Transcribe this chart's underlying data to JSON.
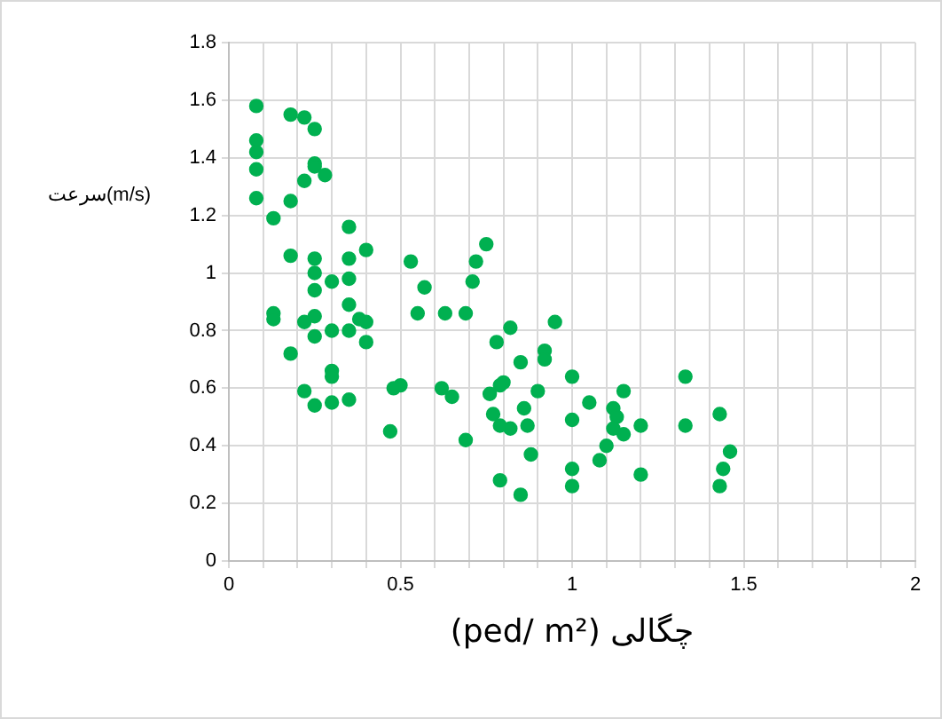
{
  "chart_data": {
    "type": "scatter",
    "xlabel": "(ped/ m²) چگالی",
    "ylabel": "سرعت(m/s)",
    "marker": "circle",
    "grid": true,
    "xlim": [
      0,
      2
    ],
    "xticks": [
      0,
      {
        "value": 0.1,
        "label": null
      },
      {
        "value": 0.2,
        "label": null
      },
      {
        "value": 0.3,
        "label": null
      },
      {
        "value": 0.4,
        "label": null
      },
      {
        "value": 0.5,
        "label": "0.5"
      },
      {
        "value": 0.6,
        "label": null
      },
      {
        "value": 0.7,
        "label": null
      },
      {
        "value": 0.8,
        "label": null
      },
      {
        "value": 0.9,
        "label": null
      },
      1,
      {
        "value": 1.1,
        "label": null
      },
      {
        "value": 1.2,
        "label": null
      },
      {
        "value": 1.3,
        "label": null
      },
      {
        "value": 1.4,
        "label": null
      },
      {
        "value": 1.5,
        "label": "1.5"
      },
      {
        "value": 1.6,
        "label": null
      },
      {
        "value": 1.7,
        "label": null
      },
      {
        "value": 1.8,
        "label": null
      },
      {
        "value": 1.9,
        "label": null
      },
      2
    ],
    "ylim": [
      0,
      1.8
    ],
    "yticks": [
      0,
      0.2,
      0.4,
      0.6,
      0.8,
      1,
      1.2,
      1.4,
      1.6,
      1.8
    ],
    "series": [
      {
        "color": "#00b050",
        "x": [
          0.08,
          0.08,
          0.08,
          0.08,
          0.08,
          0.18,
          0.22,
          0.25,
          0.25,
          0.25,
          0.22,
          0.28,
          0.18,
          0.13,
          0.35,
          0.18,
          0.4,
          0.25,
          0.35,
          0.25,
          0.3,
          0.35,
          0.25,
          0.13,
          0.13,
          0.22,
          0.3,
          0.25,
          0.35,
          0.38,
          0.35,
          0.4,
          0.4,
          0.25,
          0.18,
          0.3,
          0.3,
          0.22,
          0.3,
          0.35,
          0.25,
          0.47,
          0.5,
          0.48,
          0.53,
          0.57,
          0.55,
          0.63,
          0.69,
          0.75,
          0.72,
          0.71,
          0.62,
          0.65,
          0.78,
          0.82,
          0.76,
          0.8,
          0.79,
          0.77,
          0.69,
          0.79,
          0.79,
          0.82,
          0.85,
          0.85,
          0.88,
          0.9,
          0.92,
          0.95,
          1.0,
          0.86,
          0.87,
          0.92,
          1.0,
          1.0,
          1.0,
          1.05,
          1.08,
          1.1,
          1.12,
          1.12,
          1.13,
          1.15,
          1.15,
          1.2,
          1.2,
          1.33,
          1.33,
          1.43,
          1.46,
          1.44,
          1.43
        ],
        "values": [
          1.58,
          1.46,
          1.42,
          1.36,
          1.26,
          1.55,
          1.54,
          1.5,
          1.38,
          1.37,
          1.32,
          1.34,
          1.25,
          1.19,
          1.16,
          1.06,
          1.08,
          1.05,
          1.05,
          1.0,
          0.97,
          0.98,
          0.94,
          0.86,
          0.84,
          0.83,
          0.8,
          0.85,
          0.89,
          0.84,
          0.8,
          0.83,
          0.76,
          0.78,
          0.72,
          0.66,
          0.64,
          0.59,
          0.55,
          0.56,
          0.54,
          0.45,
          0.61,
          0.6,
          1.04,
          0.95,
          0.86,
          0.86,
          0.86,
          1.1,
          1.04,
          0.97,
          0.6,
          0.57,
          0.76,
          0.81,
          0.58,
          0.62,
          0.61,
          0.51,
          0.42,
          0.47,
          0.28,
          0.46,
          0.23,
          0.69,
          0.37,
          0.59,
          0.73,
          0.83,
          0.64,
          0.53,
          0.47,
          0.7,
          0.49,
          0.32,
          0.26,
          0.55,
          0.35,
          0.4,
          0.53,
          0.46,
          0.5,
          0.59,
          0.44,
          0.47,
          0.3,
          0.64,
          0.47,
          0.51,
          0.38,
          0.32,
          0.26
        ]
      }
    ]
  }
}
